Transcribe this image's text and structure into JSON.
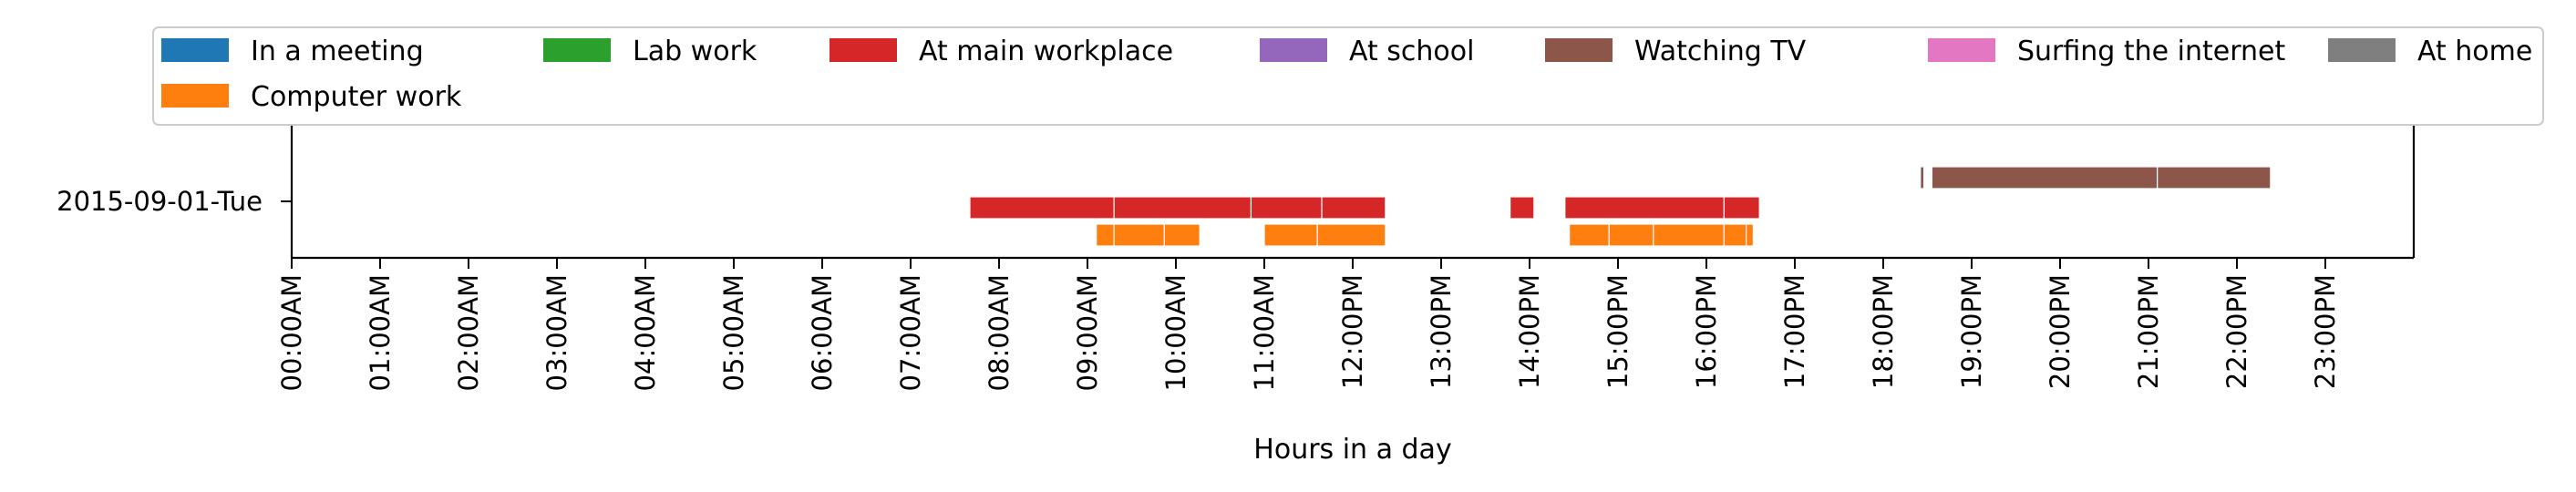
{
  "chart_data": {
    "type": "timeline",
    "xlabel": "Hours in a day",
    "ylabel": "",
    "title": "",
    "xlim": [
      0,
      24
    ],
    "x_tick_labels": [
      "00:00AM",
      "01:00AM",
      "02:00AM",
      "03:00AM",
      "04:00AM",
      "05:00AM",
      "06:00AM",
      "07:00AM",
      "08:00AM",
      "09:00AM",
      "10:00AM",
      "11:00AM",
      "12:00PM",
      "13:00PM",
      "14:00PM",
      "15:00PM",
      "16:00PM",
      "17:00PM",
      "18:00PM",
      "19:00PM",
      "20:00PM",
      "21:00PM",
      "22:00PM",
      "23:00PM"
    ],
    "row_label": "2015-09-01-Tue",
    "legend_position": "top",
    "legend": [
      {
        "name": "In a meeting",
        "color": "#1f77b4"
      },
      {
        "name": "Lab work",
        "color": "#2ca02c"
      },
      {
        "name": "At main workplace",
        "color": "#d62728"
      },
      {
        "name": "At school",
        "color": "#9467bd"
      },
      {
        "name": "Watching TV",
        "color": "#8c564b"
      },
      {
        "name": "Surfing the internet",
        "color": "#e377c2"
      },
      {
        "name": "At home",
        "color": "#7f7f7f"
      },
      {
        "name": "Computer work",
        "color": "#ff7f0e"
      }
    ],
    "activities": [
      {
        "label": "At main workplace",
        "lane": "middle",
        "segments": [
          [
            7.67,
            9.3
          ],
          [
            9.3,
            10.85
          ],
          [
            10.85,
            11.65
          ],
          [
            11.65,
            12.37
          ],
          [
            13.78,
            14.05
          ],
          [
            14.4,
            16.2
          ],
          [
            16.2,
            16.6
          ]
        ]
      },
      {
        "label": "Computer work",
        "lane": "lower",
        "segments": [
          [
            9.1,
            9.3
          ],
          [
            9.3,
            9.87
          ],
          [
            9.87,
            10.27
          ],
          [
            11.0,
            11.6
          ],
          [
            11.6,
            12.37
          ],
          [
            14.45,
            14.9
          ],
          [
            14.9,
            15.4
          ],
          [
            15.4,
            16.2
          ],
          [
            16.2,
            16.45
          ],
          [
            16.45,
            16.53
          ]
        ]
      },
      {
        "label": "Watching TV",
        "lane": "upper",
        "segments": [
          [
            18.42,
            18.46
          ],
          [
            18.55,
            21.1
          ],
          [
            21.1,
            22.38
          ]
        ]
      }
    ]
  }
}
